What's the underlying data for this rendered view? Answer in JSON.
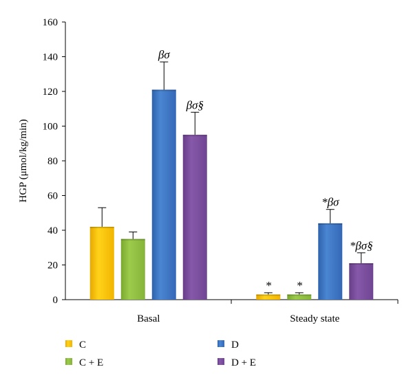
{
  "chart_data": {
    "type": "bar",
    "title": "",
    "xlabel": "",
    "ylabel": "HGP (μmol/kg/min)",
    "ylim": [
      0,
      160
    ],
    "yticks": [
      0,
      20,
      40,
      60,
      80,
      100,
      120,
      140,
      160
    ],
    "categories": [
      "Basal",
      "Steady state"
    ],
    "legend_placement": "bottom",
    "series": [
      {
        "name": "C",
        "color": "#FFCC00",
        "values": [
          42,
          3
        ],
        "errors": [
          11,
          1
        ],
        "annotations": [
          "",
          "*"
        ]
      },
      {
        "name": "C + E",
        "color": "#92C143",
        "values": [
          35,
          3
        ],
        "errors": [
          4,
          1
        ],
        "annotations": [
          "",
          "*"
        ]
      },
      {
        "name": "D",
        "color": "#3B74C2",
        "values": [
          121,
          44
        ],
        "errors": [
          16,
          8
        ],
        "annotations": [
          "βσ",
          "*βσ"
        ]
      },
      {
        "name": "D + E",
        "color": "#7A4D9A",
        "values": [
          95,
          21
        ],
        "errors": [
          13,
          6
        ],
        "annotations": [
          "βσ§",
          "*βσ§"
        ]
      }
    ]
  }
}
